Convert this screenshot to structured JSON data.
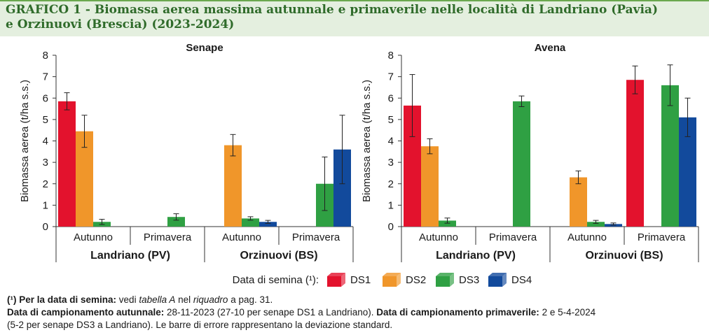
{
  "figure": {
    "title_line1": "GRAFICO 1 - Biomassa aerea massima autunnale e primaverile nelle località di Landriano (Pavia)",
    "title_line2": "e Orzinuovi (Brescia) (2023-2024)"
  },
  "legend": {
    "label": "Data di semina (¹):",
    "items": [
      {
        "name": "DS1",
        "color": "#e3122d"
      },
      {
        "name": "DS2",
        "color": "#f0962a"
      },
      {
        "name": "DS3",
        "color": "#2fa043"
      },
      {
        "name": "DS4",
        "color": "#124a9c"
      }
    ]
  },
  "chart_data": [
    {
      "type": "bar",
      "title": "Senape",
      "ylabel": "Biomassa aerea (t/ha s.s.)",
      "ylim": [
        0,
        8
      ],
      "yticks": [
        0,
        1,
        2,
        3,
        4,
        5,
        6,
        7,
        8
      ],
      "groups": [
        {
          "location": "Landriano (PV)",
          "categories": [
            "Autunno",
            "Primavera"
          ]
        },
        {
          "location": "Orzinuovi (BS)",
          "categories": [
            "Autunno",
            "Primavera"
          ]
        }
      ],
      "categories": [
        "Autunno",
        "Primavera",
        "Autunno",
        "Primavera"
      ],
      "series": [
        {
          "name": "DS1",
          "values": [
            5.85,
            null,
            null,
            null
          ],
          "errors": [
            0.4,
            null,
            null,
            null
          ]
        },
        {
          "name": "DS2",
          "values": [
            4.45,
            null,
            3.8,
            null
          ],
          "errors": [
            0.75,
            null,
            0.5,
            null
          ]
        },
        {
          "name": "DS3",
          "values": [
            0.22,
            0.45,
            0.38,
            2.0
          ],
          "errors": [
            0.12,
            0.15,
            0.08,
            1.25
          ]
        },
        {
          "name": "DS4",
          "values": [
            null,
            null,
            0.22,
            3.6
          ],
          "errors": [
            null,
            null,
            0.07,
            1.6
          ]
        }
      ]
    },
    {
      "type": "bar",
      "title": "Avena",
      "ylabel": "Biomassa aerea (t/ha s.s.)",
      "ylim": [
        0,
        8
      ],
      "yticks": [
        0,
        1,
        2,
        3,
        4,
        5,
        6,
        7,
        8
      ],
      "groups": [
        {
          "location": "Landriano (PV)",
          "categories": [
            "Autunno",
            "Primavera"
          ]
        },
        {
          "location": "Orzinuovi (BS)",
          "categories": [
            "Autunno",
            "Primavera"
          ]
        }
      ],
      "categories": [
        "Autunno",
        "Primavera",
        "Autunno",
        "Primavera"
      ],
      "series": [
        {
          "name": "DS1",
          "values": [
            5.65,
            null,
            null,
            6.85
          ],
          "errors": [
            1.45,
            null,
            null,
            0.65
          ]
        },
        {
          "name": "DS2",
          "values": [
            3.75,
            null,
            2.3,
            null
          ],
          "errors": [
            0.35,
            null,
            0.3,
            null
          ]
        },
        {
          "name": "DS3",
          "values": [
            0.28,
            5.85,
            0.22,
            6.6
          ],
          "errors": [
            0.12,
            0.25,
            0.07,
            0.95
          ]
        },
        {
          "name": "DS4",
          "values": [
            null,
            null,
            0.12,
            5.1
          ],
          "errors": [
            null,
            null,
            0.05,
            0.9
          ]
        }
      ]
    }
  ],
  "notes": {
    "n1_bold": "(¹) Per la data di semina:",
    "n1_a": " vedi ",
    "n1_i1": "tabella A",
    "n1_b": " nel ",
    "n1_i2": "riquadro",
    "n1_c": " a pag. 31.",
    "n2_bold": "Data di campionamento autunnale:",
    "n2_text": " 28-11-2023 (27-10 per senape DS1 a Landriano). ",
    "n3_bold": "Data di campionamento primaverile:",
    "n3_text": " 2 e 5-4-2024",
    "n4_text": "(5-2 per senape DS3 a Landriano). Le barre di errore rappresentano la deviazione standard."
  }
}
